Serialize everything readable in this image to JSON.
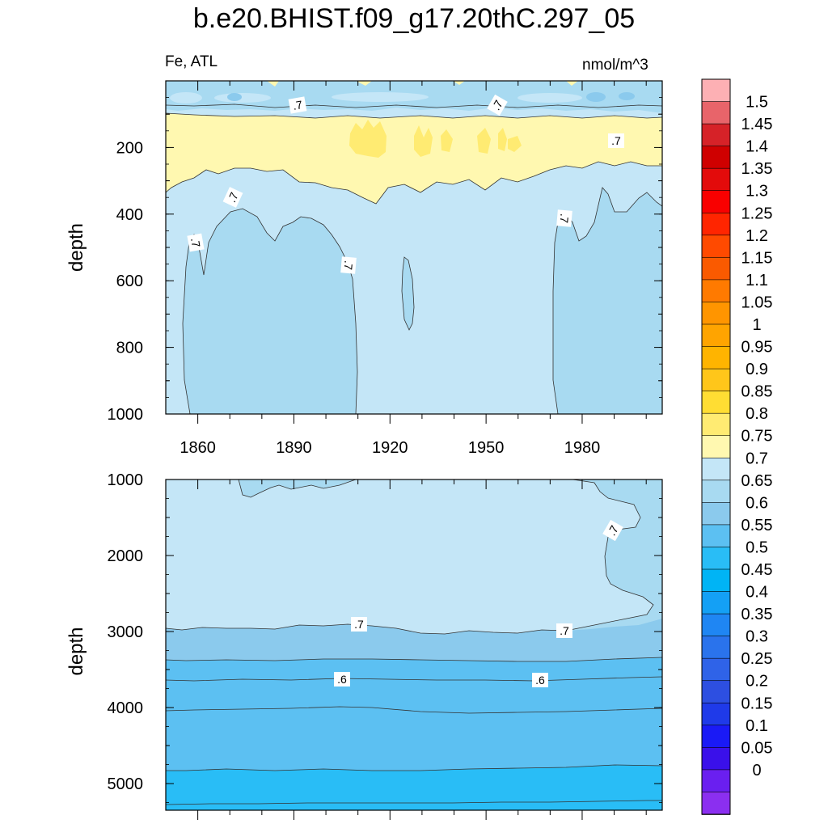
{
  "chart_data": {
    "type": "contour",
    "title": "b.e20.BHIST.f09_g17.20thC.297_05",
    "variable_label": "Fe, ATL",
    "units": "nmol/m^3",
    "ylabel": "depth",
    "x_ticks": [
      "1860",
      "1890",
      "1920",
      "1950",
      "1980"
    ],
    "xlim": [
      1850,
      2005
    ],
    "panels": [
      {
        "name": "upper",
        "ylim": [
          0,
          1000
        ],
        "y_ticks": [
          "200",
          "400",
          "600",
          "800",
          "1000"
        ],
        "contour_labels": [
          ".7",
          ".7",
          ".7",
          ".7",
          ".7",
          ".7",
          ".7"
        ]
      },
      {
        "name": "lower",
        "ylim": [
          1000,
          5350
        ],
        "y_ticks": [
          "1000",
          "2000",
          "3000",
          "4000",
          "5000"
        ],
        "contour_labels": [
          ".7",
          ".7",
          ".7",
          ".6",
          ".6"
        ]
      }
    ],
    "colorbar": {
      "levels": [
        "1.5",
        "1.45",
        "1.4",
        "1.35",
        "1.3",
        "1.25",
        "1.2",
        "1.15",
        "1.1",
        "1.05",
        "1",
        "0.95",
        "0.9",
        "0.85",
        "0.8",
        "0.75",
        "0.7",
        "0.65",
        "0.6",
        "0.55",
        "0.5",
        "0.45",
        "0.4",
        "0.35",
        "0.3",
        "0.25",
        "0.2",
        "0.15",
        "0.1",
        "0.05",
        "0"
      ],
      "colors": [
        "#fdb0b4",
        "#e8646a",
        "#d62228",
        "#cf0000",
        "#e30b0b",
        "#f90000",
        "#ff2500",
        "#ff4a00",
        "#fa5a00",
        "#ff7a00",
        "#ff9500",
        "#ffa400",
        "#ffb400",
        "#ffc61a",
        "#ffdd33",
        "#ffeb72",
        "#fff8b0",
        "#c4e6f7",
        "#a8daf1",
        "#8bcaed",
        "#5cc0f2",
        "#29bdf6",
        "#00b4f5",
        "#14a0f5",
        "#1f86f3",
        "#2a73ec",
        "#2f63e8",
        "#2d4fe1",
        "#1f3ae9",
        "#1a1af6",
        "#3a10ea",
        "#6a1ff0",
        "#8b2ff0"
      ]
    },
    "region_colors": {
      "v075_08": "#fff8b0",
      "v08_085": "#ffeb72",
      "v07_075": "#c4e6f7",
      "v065_07": "#a8daf1",
      "v06_065": "#8bcaed",
      "v055_06": "#5cc0f2",
      "v05_055": "#29bdf6"
    }
  }
}
